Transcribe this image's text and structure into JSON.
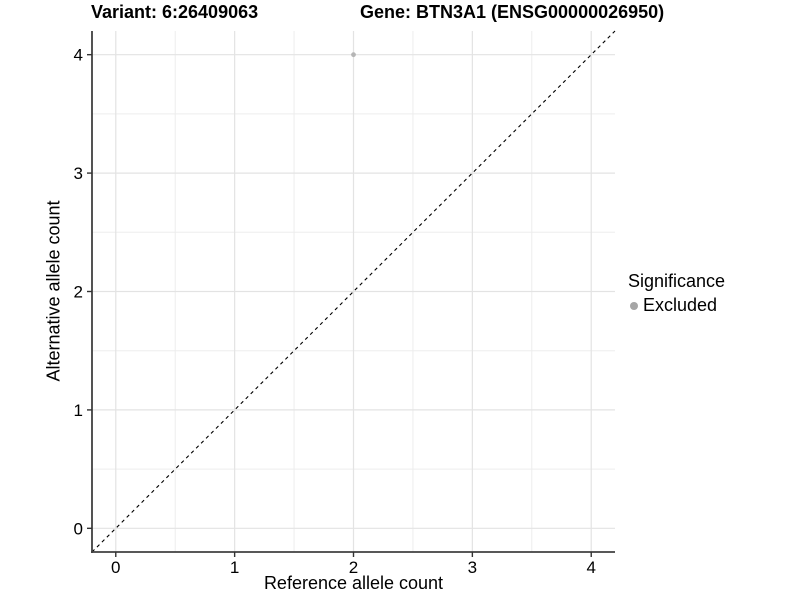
{
  "chart_data": {
    "type": "scatter",
    "titles": {
      "left": "Variant: 6:26409063",
      "right": "Gene: BTN3A1 (ENSG00000026950)"
    },
    "xlabel": "Reference allele count",
    "ylabel": "Alternative allele count",
    "xlim": [
      -0.2,
      4.2
    ],
    "ylim": [
      -0.2,
      4.2
    ],
    "xticks": [
      0,
      1,
      2,
      3,
      4
    ],
    "yticks": [
      0,
      1,
      2,
      3,
      4
    ],
    "minor_step": 0.5,
    "grid": "on",
    "abline": {
      "slope": 1,
      "intercept": 0,
      "style": "dashed",
      "color": "#000000"
    },
    "points": [
      {
        "x": 2,
        "y": 4,
        "significance": "Excluded"
      }
    ],
    "legend": {
      "title": "Significance",
      "position": "right",
      "items": [
        {
          "label": "Excluded",
          "color": "#a6a6a6"
        }
      ]
    },
    "colors": {
      "point": "#b5b5b5",
      "grid_major": "#e3e3e3",
      "grid_minor": "#ededed",
      "axis_line": "#404040",
      "tick_mark": "#333333",
      "text": "#000000",
      "background": "#ffffff"
    }
  }
}
